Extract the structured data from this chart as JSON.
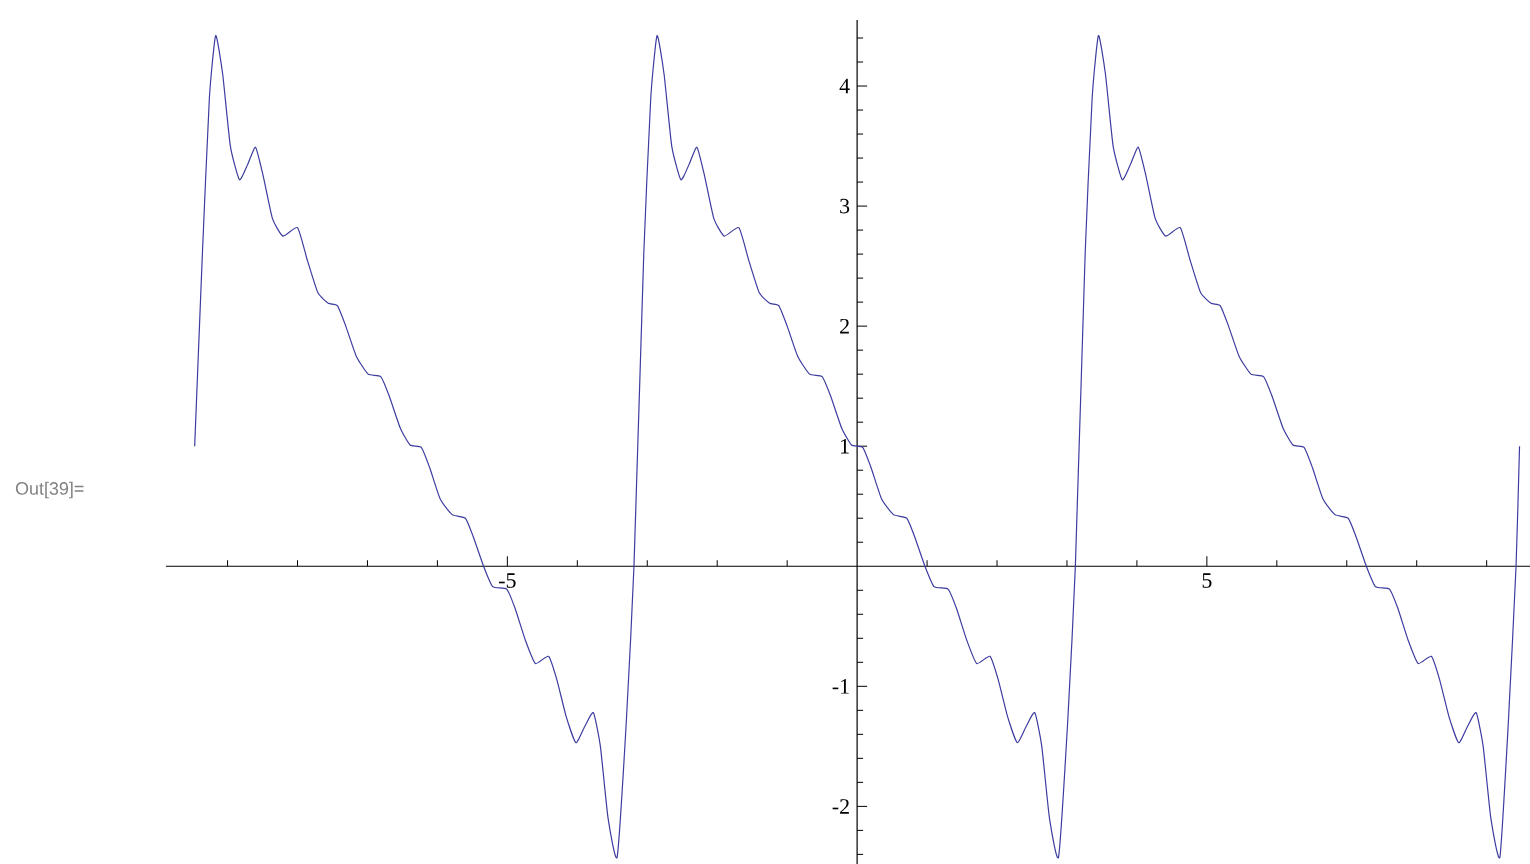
{
  "chart_data": {
    "type": "line",
    "color": "#3c3ca0",
    "x": [
      -9.47,
      -9.36,
      -9.26,
      -9.17,
      -9.07,
      -8.96,
      -8.83,
      -8.71,
      -8.6,
      -8.49,
      -8.36,
      -8.21,
      -8.0,
      -7.86,
      -7.71,
      -7.56,
      -7.43,
      -7.31,
      -7.16,
      -6.99,
      -6.81,
      -6.69,
      -6.53,
      -6.39,
      -6.23,
      -6.11,
      -5.96,
      -5.79,
      -5.6,
      -5.49,
      -5.34,
      -5.21,
      -5.01,
      -4.89,
      -4.74,
      -4.6,
      -4.41,
      -4.29,
      -4.16,
      -4.02,
      -3.89,
      -3.77,
      -3.67,
      -3.56,
      -3.43,
      -3.3,
      -3.19,
      -3.05,
      -2.95,
      -2.86,
      -2.76,
      -2.65,
      -2.52,
      -2.4,
      -2.29,
      -2.18,
      -2.05,
      -1.9,
      -1.69,
      -1.55,
      -1.4,
      -1.25,
      -1.12,
      -1.0,
      -0.85,
      -0.68,
      -0.5,
      -0.38,
      -0.22,
      -0.08,
      0.08,
      0.2,
      0.35,
      0.52,
      0.71,
      0.82,
      0.97,
      1.1,
      1.3,
      1.42,
      1.57,
      1.71,
      1.9,
      2.02,
      2.15,
      2.29,
      2.42,
      2.54,
      2.64,
      2.75,
      2.88,
      3.01,
      3.12,
      3.26,
      3.36,
      3.45,
      3.55,
      3.66,
      3.79,
      3.91,
      4.02,
      4.13,
      4.26,
      4.41,
      4.62,
      4.76,
      4.91,
      5.06,
      5.19,
      5.31,
      5.46,
      5.63,
      5.81,
      5.93,
      6.09,
      6.23,
      6.39,
      6.51,
      6.66,
      6.83,
      7.02,
      7.13,
      7.28,
      7.41,
      7.61,
      7.73,
      7.88,
      8.02,
      8.21,
      8.33,
      8.46,
      8.6,
      8.73,
      8.85,
      8.95,
      9.06,
      9.19,
      9.31,
      9.42,
      9.47
    ],
    "values": [
      1,
      2.6,
      3.9,
      4.42,
      4.1,
      3.5,
      3.22,
      3.35,
      3.49,
      3.25,
      2.9,
      2.75,
      2.82,
      2.55,
      2.28,
      2.19,
      2.17,
      2.0,
      1.75,
      1.6,
      1.58,
      1.42,
      1.15,
      1.01,
      0.99,
      0.82,
      0.56,
      0.43,
      0.4,
      0.25,
      0,
      -0.17,
      -0.19,
      -0.35,
      -0.62,
      -0.81,
      -0.75,
      -0.95,
      -1.25,
      -1.47,
      -1.33,
      -1.22,
      -1.5,
      -2.1,
      -2.42,
      -1.3,
      0,
      2.6,
      3.9,
      4.42,
      4.1,
      3.5,
      3.22,
      3.35,
      3.49,
      3.25,
      2.9,
      2.75,
      2.82,
      2.55,
      2.28,
      2.19,
      2.17,
      2.0,
      1.75,
      1.6,
      1.58,
      1.42,
      1.15,
      1.01,
      0.99,
      0.82,
      0.56,
      0.43,
      0.4,
      0.25,
      0,
      -0.17,
      -0.19,
      -0.35,
      -0.62,
      -0.81,
      -0.75,
      -0.95,
      -1.25,
      -1.47,
      -1.33,
      -1.22,
      -1.5,
      -2.1,
      -2.42,
      -1.3,
      0,
      2.6,
      3.9,
      4.42,
      4.1,
      3.5,
      3.22,
      3.35,
      3.49,
      3.25,
      2.9,
      2.75,
      2.82,
      2.55,
      2.28,
      2.19,
      2.17,
      2.0,
      1.75,
      1.6,
      1.58,
      1.42,
      1.15,
      1.01,
      0.99,
      0.82,
      0.56,
      0.43,
      0.4,
      0.25,
      0,
      -0.17,
      -0.19,
      -0.35,
      -0.62,
      -0.81,
      -0.75,
      -0.95,
      -1.25,
      -1.47,
      -1.33,
      -1.22,
      -1.5,
      -2.1,
      -2.42,
      -1.3,
      0,
      1
    ],
    "xlim": [
      -9.88,
      9.62
    ],
    "ylim": [
      -2.48,
      4.55
    ],
    "xticks": [
      {
        "value": -9,
        "label": null
      },
      {
        "value": -8,
        "label": null
      },
      {
        "value": -7,
        "label": null
      },
      {
        "value": -6,
        "label": null
      },
      -5,
      {
        "value": -4,
        "label": null
      },
      {
        "value": -3,
        "label": null
      },
      {
        "value": -2,
        "label": null
      },
      {
        "value": -1,
        "label": null
      },
      {
        "value": 1,
        "label": null
      },
      {
        "value": 2,
        "label": null
      },
      {
        "value": 3,
        "label": null
      },
      {
        "value": 4,
        "label": null
      },
      5,
      {
        "value": 6,
        "label": null
      },
      {
        "value": 7,
        "label": null
      },
      {
        "value": 8,
        "label": null
      },
      {
        "value": 9,
        "label": null
      }
    ],
    "yticks": [
      {
        "value": -2.4,
        "label": null
      },
      {
        "value": -2.2,
        "label": null
      },
      -2,
      {
        "value": -1.8,
        "label": null
      },
      {
        "value": -1.6,
        "label": null
      },
      {
        "value": -1.4,
        "label": null
      },
      {
        "value": -1.2,
        "label": null
      },
      -1,
      {
        "value": -0.8,
        "label": null
      },
      {
        "value": -0.6,
        "label": null
      },
      {
        "value": -0.4,
        "label": null
      },
      {
        "value": -0.2,
        "label": null
      },
      {
        "value": 0.2,
        "label": null
      },
      {
        "value": 0.4,
        "label": null
      },
      {
        "value": 0.6,
        "label": null
      },
      {
        "value": 0.8,
        "label": null
      },
      1,
      {
        "value": 1.2,
        "label": null
      },
      {
        "value": 1.4,
        "label": null
      },
      {
        "value": 1.6,
        "label": null
      },
      {
        "value": 1.8,
        "label": null
      },
      2,
      {
        "value": 2.2,
        "label": null
      },
      {
        "value": 2.4,
        "label": null
      },
      {
        "value": 2.6,
        "label": null
      },
      {
        "value": 2.8,
        "label": null
      },
      3,
      {
        "value": 3.2,
        "label": null
      },
      {
        "value": 3.4,
        "label": null
      },
      {
        "value": 3.6,
        "label": null
      },
      {
        "value": 3.8,
        "label": null
      },
      4,
      {
        "value": 4.2,
        "label": null
      },
      {
        "value": 4.4,
        "label": null
      }
    ],
    "annotations": [
      "Out[39]="
    ]
  }
}
